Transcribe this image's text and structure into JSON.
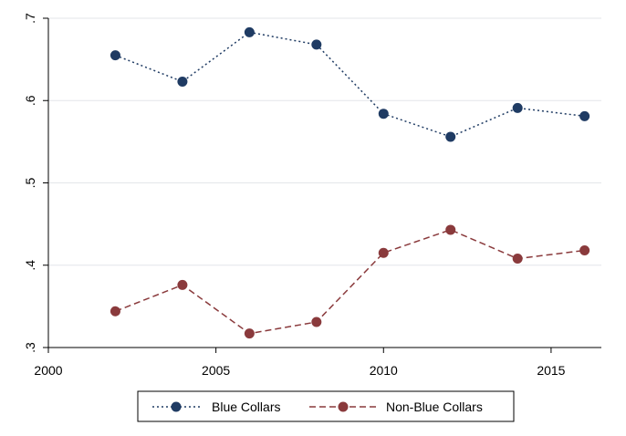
{
  "chart_data": {
    "type": "line",
    "title": "",
    "xlabel": "",
    "ylabel": "",
    "xlim": [
      2000,
      2016.5
    ],
    "ylim": [
      0.3,
      0.7
    ],
    "xticks": [
      2000,
      2005,
      2010,
      2015
    ],
    "xtick_labels": [
      "2000",
      "2005",
      "2010",
      "2015"
    ],
    "yticks": [
      0.3,
      0.4,
      0.5,
      0.6,
      0.7
    ],
    "ytick_labels": [
      ".3",
      ".4",
      ".5",
      ".6",
      ".7"
    ],
    "grid": "horizontal",
    "legend_position": "bottom",
    "x": [
      2002,
      2004,
      2006,
      2008,
      2010,
      2012,
      2014,
      2016
    ],
    "series": [
      {
        "name": "Blue Collars",
        "values": [
          0.655,
          0.623,
          0.683,
          0.668,
          0.584,
          0.556,
          0.591,
          0.581
        ],
        "color": "#1f3b63",
        "line_style": "dotted"
      },
      {
        "name": "Non-Blue Collars",
        "values": [
          0.344,
          0.376,
          0.317,
          0.331,
          0.415,
          0.443,
          0.408,
          0.418
        ],
        "color": "#8a3a3c",
        "line_style": "dashed"
      }
    ]
  }
}
